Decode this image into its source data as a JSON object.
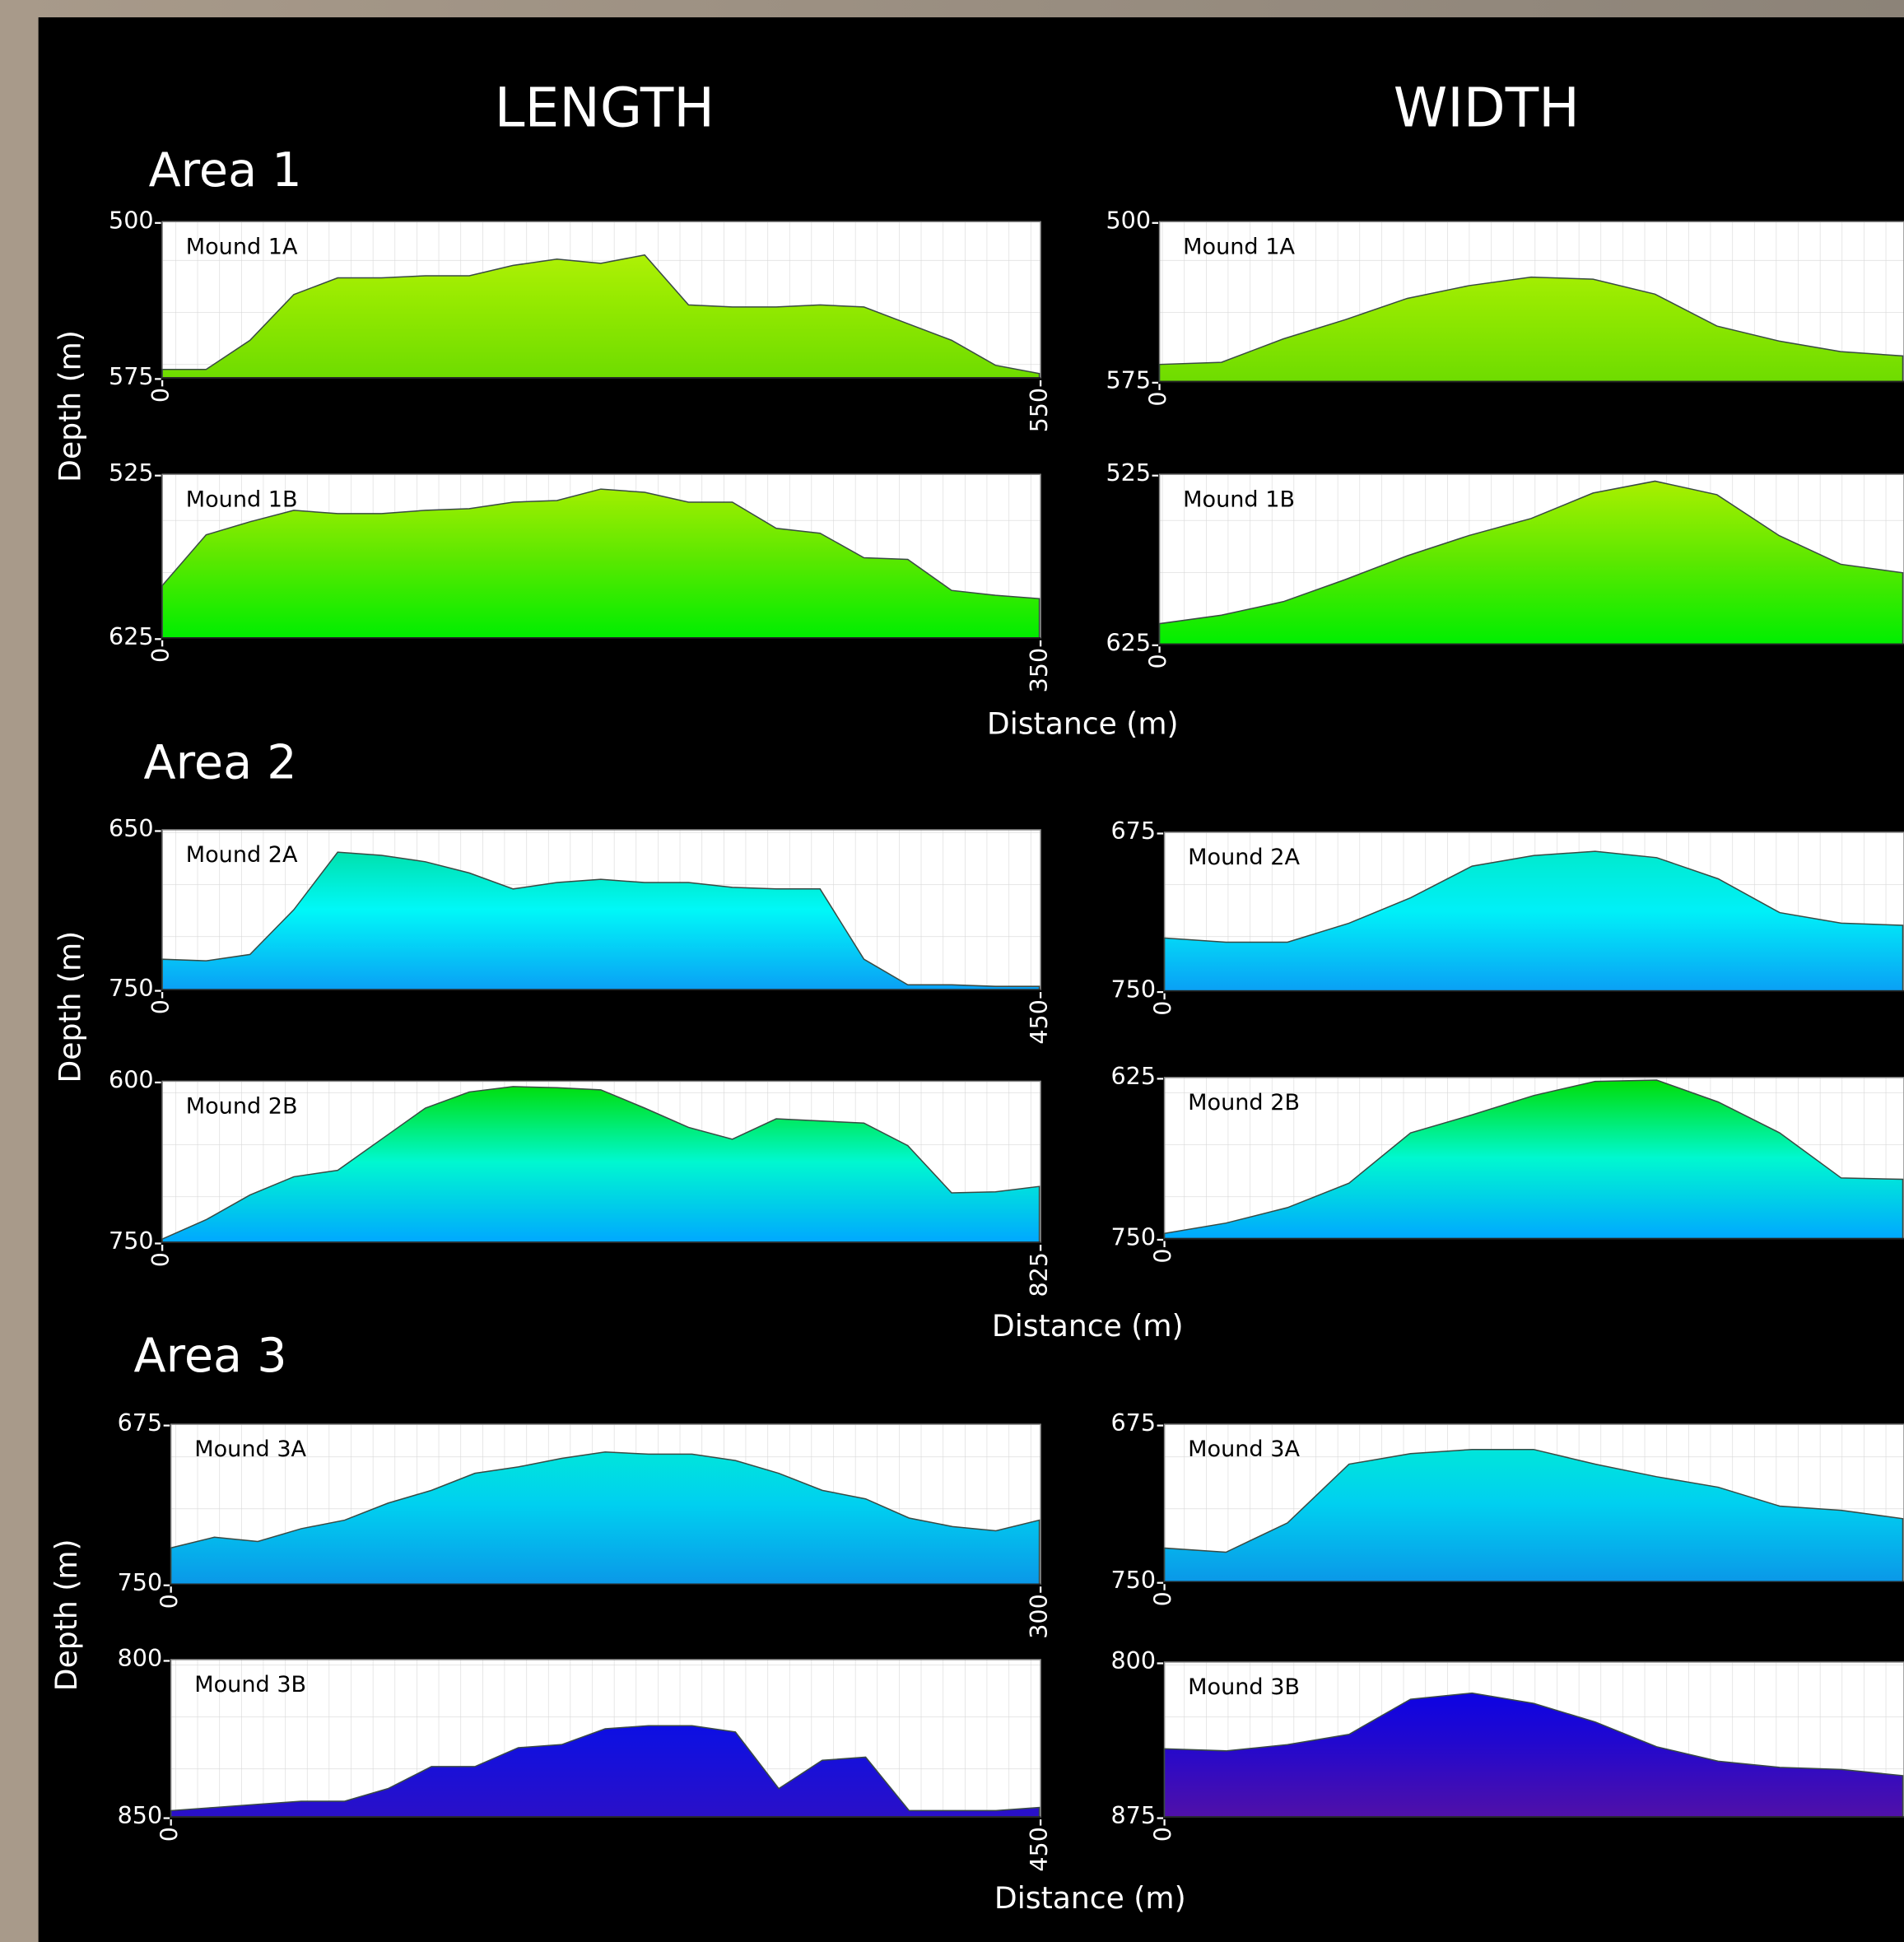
{
  "columns": [
    "LENGTH",
    "WIDTH"
  ],
  "areas": [
    {
      "title": "Area 1",
      "ylabel": "Depth (m)",
      "xlabel": "Distance (m)"
    },
    {
      "title": "Area 2",
      "ylabel": "Depth (m)",
      "xlabel": "Distance (m)"
    },
    {
      "title": "Area 3",
      "ylabel": "Depth (m)",
      "xlabel": "Distance (m)"
    }
  ],
  "chart_data": [
    {
      "type": "area",
      "title": "Mound 1A",
      "ylim": [
        500,
        575
      ],
      "yticks": [
        500,
        575
      ],
      "y_inverted": true,
      "xlim": [
        0,
        550
      ],
      "xticks": [
        0,
        550
      ],
      "colors": [
        "#c0f60a",
        "#96ea00",
        "#6edc00"
      ],
      "values": [
        571,
        571,
        557,
        535,
        527,
        527,
        526,
        526,
        521,
        518,
        520,
        516,
        540,
        541,
        541,
        540,
        541,
        549,
        557,
        569,
        573
      ]
    },
    {
      "type": "area",
      "title": "Mound 1A",
      "ylim": [
        500,
        575
      ],
      "yticks": [
        500,
        575
      ],
      "y_inverted": true,
      "xticks": [
        0
      ],
      "colors": [
        "#c0f60a",
        "#96ea00",
        "#6edc00"
      ],
      "values": [
        567,
        566,
        555,
        546,
        536,
        530,
        526,
        527,
        534,
        549,
        556,
        561,
        563
      ]
    },
    {
      "type": "area",
      "title": "Mound 1B",
      "ylim": [
        525,
        625
      ],
      "yticks": [
        525,
        625
      ],
      "y_inverted": true,
      "xlim": [
        0,
        350
      ],
      "xticks": [
        0,
        350
      ],
      "colors": [
        "#b0f000",
        "#5ee800",
        "#00ee00"
      ],
      "values": [
        593,
        562,
        554,
        547,
        549,
        549,
        547,
        546,
        542,
        541,
        534,
        536,
        542,
        542,
        558,
        561,
        576,
        577,
        596,
        599,
        601
      ]
    },
    {
      "type": "area",
      "title": "Mound 1B",
      "ylim": [
        525,
        625
      ],
      "yticks": [
        525,
        625
      ],
      "y_inverted": true,
      "xticks": [
        0
      ],
      "colors": [
        "#b0f000",
        "#5ee800",
        "#00ee00"
      ],
      "values": [
        613,
        608,
        600,
        587,
        573,
        561,
        551,
        536,
        529,
        537,
        561,
        578,
        583
      ]
    },
    {
      "type": "area",
      "title": "Mound 2A",
      "ylim": [
        650,
        750
      ],
      "yticks": [
        650,
        750
      ],
      "y_inverted": true,
      "xlim": [
        0,
        450
      ],
      "xticks": [
        0,
        450
      ],
      "colors": [
        "#00d890",
        "#00f8f8",
        "#0aa0f5"
      ],
      "values": [
        731,
        732,
        728,
        700,
        664,
        666,
        670,
        677,
        687,
        683,
        681,
        683,
        683,
        686,
        687,
        687,
        731,
        747,
        747,
        748,
        748
      ]
    },
    {
      "type": "area",
      "title": "Mound 2A",
      "ylim": [
        675,
        750
      ],
      "yticks": [
        675,
        750
      ],
      "y_inverted": true,
      "xticks": [
        0
      ],
      "colors": [
        "#00e8c0",
        "#00f0f8",
        "#0aa0f5"
      ],
      "values": [
        725,
        727,
        727,
        718,
        706,
        691,
        686,
        684,
        687,
        697,
        713,
        718,
        719
      ]
    },
    {
      "type": "area",
      "title": "Mound 2B",
      "ylim": [
        600,
        750
      ],
      "yticks": [
        600,
        750
      ],
      "y_inverted": true,
      "xlim": [
        0,
        825
      ],
      "xticks": [
        0,
        825
      ],
      "colors": [
        "#00dd00",
        "#00f8d0",
        "#00a8ff"
      ],
      "values": [
        747,
        729,
        706,
        689,
        683,
        654,
        625,
        610,
        605,
        606,
        608,
        625,
        643,
        654,
        635,
        637,
        639,
        660,
        704,
        703,
        698
      ]
    },
    {
      "type": "area",
      "title": "Mound 2B",
      "ylim": [
        625,
        750
      ],
      "yticks": [
        625,
        750
      ],
      "y_inverted": true,
      "xticks": [
        0
      ],
      "colors": [
        "#00dd00",
        "#00f8d0",
        "#00a8ff"
      ],
      "values": [
        746,
        738,
        726,
        707,
        668,
        654,
        639,
        628,
        627,
        644,
        668,
        703,
        704
      ]
    },
    {
      "type": "area",
      "title": "Mound 3A",
      "ylim": [
        675,
        750
      ],
      "yticks": [
        675,
        750
      ],
      "y_inverted": true,
      "xlim": [
        0,
        300
      ],
      "xticks": [
        0,
        300
      ],
      "colors": [
        "#00f0d0",
        "#00d0f0",
        "#0a98e8"
      ],
      "values": [
        733,
        728,
        730,
        724,
        720,
        712,
        706,
        698,
        695,
        691,
        688,
        689,
        689,
        692,
        698,
        706,
        710,
        719,
        723,
        725,
        720
      ]
    },
    {
      "type": "area",
      "title": "Mound 3A",
      "ylim": [
        675,
        750
      ],
      "yticks": [
        675,
        750
      ],
      "y_inverted": true,
      "xticks": [
        0
      ],
      "colors": [
        "#00f0d0",
        "#00d0f0",
        "#0a98e8"
      ],
      "values": [
        734,
        736,
        722,
        694,
        689,
        687,
        687,
        694,
        700,
        705,
        714,
        716,
        720
      ]
    },
    {
      "type": "area",
      "title": "Mound 3B",
      "ylim": [
        800,
        850
      ],
      "yticks": [
        800,
        850
      ],
      "y_inverted": true,
      "xlim": [
        0,
        450
      ],
      "xticks": [
        0,
        450
      ],
      "colors": [
        "#0000f0",
        "#1010e0",
        "#2a10c8"
      ],
      "values": [
        848,
        847,
        846,
        845,
        845,
        841,
        834,
        834,
        828,
        827,
        822,
        821,
        821,
        823,
        841,
        832,
        831,
        848,
        848,
        848,
        847
      ]
    },
    {
      "type": "area",
      "title": "Mound 3B",
      "ylim": [
        800,
        875
      ],
      "yticks": [
        800,
        875
      ],
      "y_inverted": true,
      "xticks": [
        0
      ],
      "colors": [
        "#0000f0",
        "#2008d0",
        "#5010a8"
      ],
      "values": [
        842,
        843,
        840,
        835,
        818,
        815,
        820,
        829,
        841,
        848,
        851,
        852,
        855
      ]
    }
  ]
}
